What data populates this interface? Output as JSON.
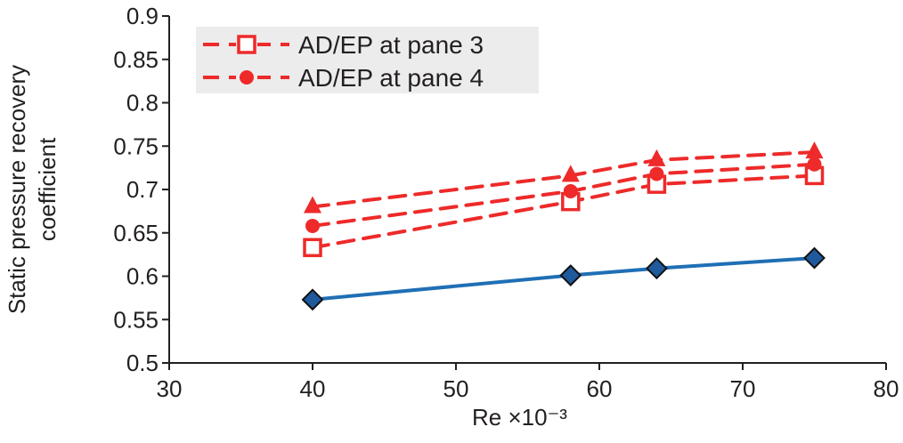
{
  "chart_data": {
    "type": "line",
    "title": "",
    "xlabel": "Re ×10⁻³",
    "ylabel": [
      "Static pressure recovery",
      "coefficient"
    ],
    "xlim": [
      30,
      80
    ],
    "ylim": [
      0.5,
      0.9
    ],
    "xticks": [
      "30",
      "40",
      "50",
      "60",
      "70",
      "80"
    ],
    "yticks": [
      "0.5",
      "0.55",
      "0.6",
      "0.65",
      "0.7",
      "0.75",
      "0.8",
      "0.85",
      "0.9"
    ],
    "grid": false,
    "legend_placement": "top-left",
    "x": [
      40,
      58,
      64,
      75
    ],
    "series": [
      {
        "name": "",
        "values": [
          0.573,
          0.601,
          0.609,
          0.621
        ],
        "color": "#1f6fb5",
        "marker": "diamond",
        "dashed": false
      },
      {
        "name": "AD/EP at pane 3",
        "values": [
          0.633,
          0.686,
          0.706,
          0.716
        ],
        "color": "#ee2a2a",
        "marker": "square",
        "dashed": true
      },
      {
        "name": "AD/EP at pane 4",
        "values": [
          0.658,
          0.698,
          0.718,
          0.729
        ],
        "color": "#ee2a2a",
        "marker": "circle",
        "dashed": true
      },
      {
        "name": "",
        "values": [
          0.68,
          0.716,
          0.734,
          0.743
        ],
        "color": "#ee2a2a",
        "marker": "triangle",
        "dashed": true
      }
    ]
  }
}
